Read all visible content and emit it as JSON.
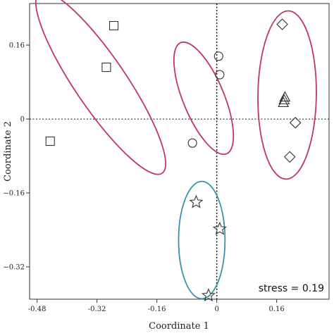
{
  "chart_data": {
    "type": "scatter",
    "title": "",
    "xlabel": "Coordinate 1",
    "ylabel": "Coordinate 2",
    "xlim": [
      -0.5,
      0.3
    ],
    "ylim": [
      -0.39,
      0.25
    ],
    "xticks": [
      -0.48,
      -0.32,
      -0.16,
      0,
      0.16
    ],
    "xtick_labels": [
      "-0.48",
      "-0.32",
      "-0.16",
      "0",
      "0.16"
    ],
    "yticks": [
      0.16,
      0,
      -0.16,
      -0.32
    ],
    "ytick_labels": [
      "0.16",
      "0",
      "−0.16",
      "−0.32"
    ],
    "reference_lines": {
      "x": 0,
      "y": 0,
      "style": "dotted"
    },
    "grid": false,
    "annotation": "stress = 0.19",
    "groups": [
      {
        "marker": "square",
        "points": [
          [
            -0.445,
            -0.048
          ],
          [
            -0.295,
            0.112
          ],
          [
            -0.275,
            0.202
          ]
        ]
      },
      {
        "marker": "circle",
        "points": [
          [
            -0.065,
            -0.052
          ],
          [
            0.005,
            0.136
          ],
          [
            0.008,
            0.096
          ]
        ]
      },
      {
        "marker": "triangle",
        "points": [
          [
            0.178,
            0.036
          ],
          [
            0.18,
            0.042
          ],
          [
            0.182,
            0.048
          ]
        ]
      },
      {
        "marker": "diamond",
        "points": [
          [
            0.175,
            0.205
          ],
          [
            0.21,
            -0.008
          ],
          [
            0.195,
            -0.082
          ]
        ]
      },
      {
        "marker": "star",
        "points": [
          [
            -0.055,
            -0.18
          ],
          [
            0.008,
            -0.238
          ],
          [
            -0.022,
            -0.382
          ]
        ]
      }
    ],
    "ellipses": [
      {
        "color": "#c0356a",
        "cx": -0.31,
        "cy": 0.078,
        "rx": 0.255,
        "ry": 0.062,
        "angle_deg": -50
      },
      {
        "color": "#c0356a",
        "cx": -0.035,
        "cy": 0.045,
        "rx": 0.135,
        "ry": 0.052,
        "angle_deg": -63
      },
      {
        "color": "#c0356a",
        "cx": 0.188,
        "cy": 0.052,
        "rx": 0.182,
        "ry": 0.078,
        "angle_deg": -91
      },
      {
        "color": "#3a93a6",
        "cx": -0.04,
        "cy": -0.262,
        "rx": 0.127,
        "ry": 0.062,
        "angle_deg": -90
      }
    ]
  }
}
